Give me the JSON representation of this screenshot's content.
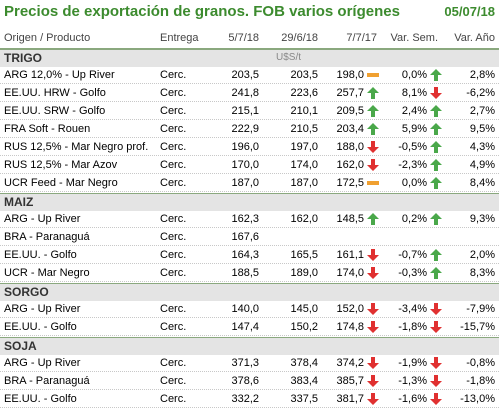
{
  "title": "Precios de exportación de granos. FOB varios orígenes",
  "date": "05/07/18",
  "columns": [
    "Origen / Producto",
    "Entrega",
    "5/7/18",
    "29/6/18",
    "7/7/17",
    "Var. Sem.",
    "Var. Año"
  ],
  "colors": {
    "accent": "#3c8b2e",
    "up": "#4aa84a",
    "down": "#e03030",
    "flat": "#f0a030"
  },
  "sections": [
    {
      "name": "TRIGO",
      "unit": "U$S/t",
      "rows": [
        {
          "product": "ARG 12,0% - Up River",
          "delivery": "Cerc.",
          "p1": "203,5",
          "p2": "203,5",
          "p3": "198,0",
          "ind1": "flat",
          "vs": "0,0%",
          "ind2": "up",
          "va": "2,8%"
        },
        {
          "product": "EE.UU. HRW - Golfo",
          "delivery": "Cerc.",
          "p1": "241,8",
          "p2": "223,6",
          "p3": "257,7",
          "ind1": "up",
          "vs": "8,1%",
          "ind2": "down",
          "va": "-6,2%"
        },
        {
          "product": "EE.UU. SRW - Golfo",
          "delivery": "Cerc.",
          "p1": "215,1",
          "p2": "210,1",
          "p3": "209,5",
          "ind1": "up",
          "vs": "2,4%",
          "ind2": "up",
          "va": "2,7%"
        },
        {
          "product": "FRA Soft - Rouen",
          "delivery": "Cerc.",
          "p1": "222,9",
          "p2": "210,5",
          "p3": "203,4",
          "ind1": "up",
          "vs": "5,9%",
          "ind2": "up",
          "va": "9,5%"
        },
        {
          "product": "RUS 12,5% - Mar Negro prof.",
          "delivery": "Cerc.",
          "p1": "196,0",
          "p2": "197,0",
          "p3": "188,0",
          "ind1": "down",
          "vs": "-0,5%",
          "ind2": "up",
          "va": "4,3%"
        },
        {
          "product": "RUS 12,5% - Mar Azov",
          "delivery": "Cerc.",
          "p1": "170,0",
          "p2": "174,0",
          "p3": "162,0",
          "ind1": "down",
          "vs": "-2,3%",
          "ind2": "up",
          "va": "4,9%"
        },
        {
          "product": "UCR Feed - Mar Negro",
          "delivery": "Cerc.",
          "p1": "187,0",
          "p2": "187,0",
          "p3": "172,5",
          "ind1": "flat",
          "vs": "0,0%",
          "ind2": "up",
          "va": "8,4%"
        }
      ]
    },
    {
      "name": "MAIZ",
      "unit": "",
      "rows": [
        {
          "product": "ARG - Up River",
          "delivery": "Cerc.",
          "p1": "162,3",
          "p2": "162,0",
          "p3": "148,5",
          "ind1": "up",
          "vs": "0,2%",
          "ind2": "up",
          "va": "9,3%"
        },
        {
          "product": "BRA - Paranaguá",
          "delivery": "Cerc.",
          "p1": "167,6",
          "p2": "",
          "p3": "",
          "ind1": "",
          "vs": "",
          "ind2": "",
          "va": ""
        },
        {
          "product": "EE.UU. - Golfo",
          "delivery": "Cerc.",
          "p1": "164,3",
          "p2": "165,5",
          "p3": "161,1",
          "ind1": "down",
          "vs": "-0,7%",
          "ind2": "up",
          "va": "2,0%"
        },
        {
          "product": "UCR - Mar Negro",
          "delivery": "Cerc.",
          "p1": "188,5",
          "p2": "189,0",
          "p3": "174,0",
          "ind1": "down",
          "vs": "-0,3%",
          "ind2": "up",
          "va": "8,3%"
        }
      ]
    },
    {
      "name": "SORGO",
      "unit": "",
      "rows": [
        {
          "product": "ARG - Up River",
          "delivery": "Cerc.",
          "p1": "140,0",
          "p2": "145,0",
          "p3": "152,0",
          "ind1": "down",
          "vs": "-3,4%",
          "ind2": "down",
          "va": "-7,9%"
        },
        {
          "product": "EE.UU. - Golfo",
          "delivery": "Cerc.",
          "p1": "147,4",
          "p2": "150,2",
          "p3": "174,8",
          "ind1": "down",
          "vs": "-1,8%",
          "ind2": "down",
          "va": "-15,7%"
        }
      ]
    },
    {
      "name": "SOJA",
      "unit": "",
      "rows": [
        {
          "product": "ARG - Up River",
          "delivery": "Cerc.",
          "p1": "371,3",
          "p2": "378,4",
          "p3": "374,2",
          "ind1": "down",
          "vs": "-1,9%",
          "ind2": "down",
          "va": "-0,8%"
        },
        {
          "product": "BRA - Paranaguá",
          "delivery": "Cerc.",
          "p1": "378,6",
          "p2": "383,4",
          "p3": "385,7",
          "ind1": "down",
          "vs": "-1,3%",
          "ind2": "down",
          "va": "-1,8%"
        },
        {
          "product": "EE.UU. - Golfo",
          "delivery": "Cerc.",
          "p1": "332,2",
          "p2": "337,5",
          "p3": "381,7",
          "ind1": "down",
          "vs": "-1,6%",
          "ind2": "down",
          "va": "-13,0%"
        }
      ]
    }
  ]
}
